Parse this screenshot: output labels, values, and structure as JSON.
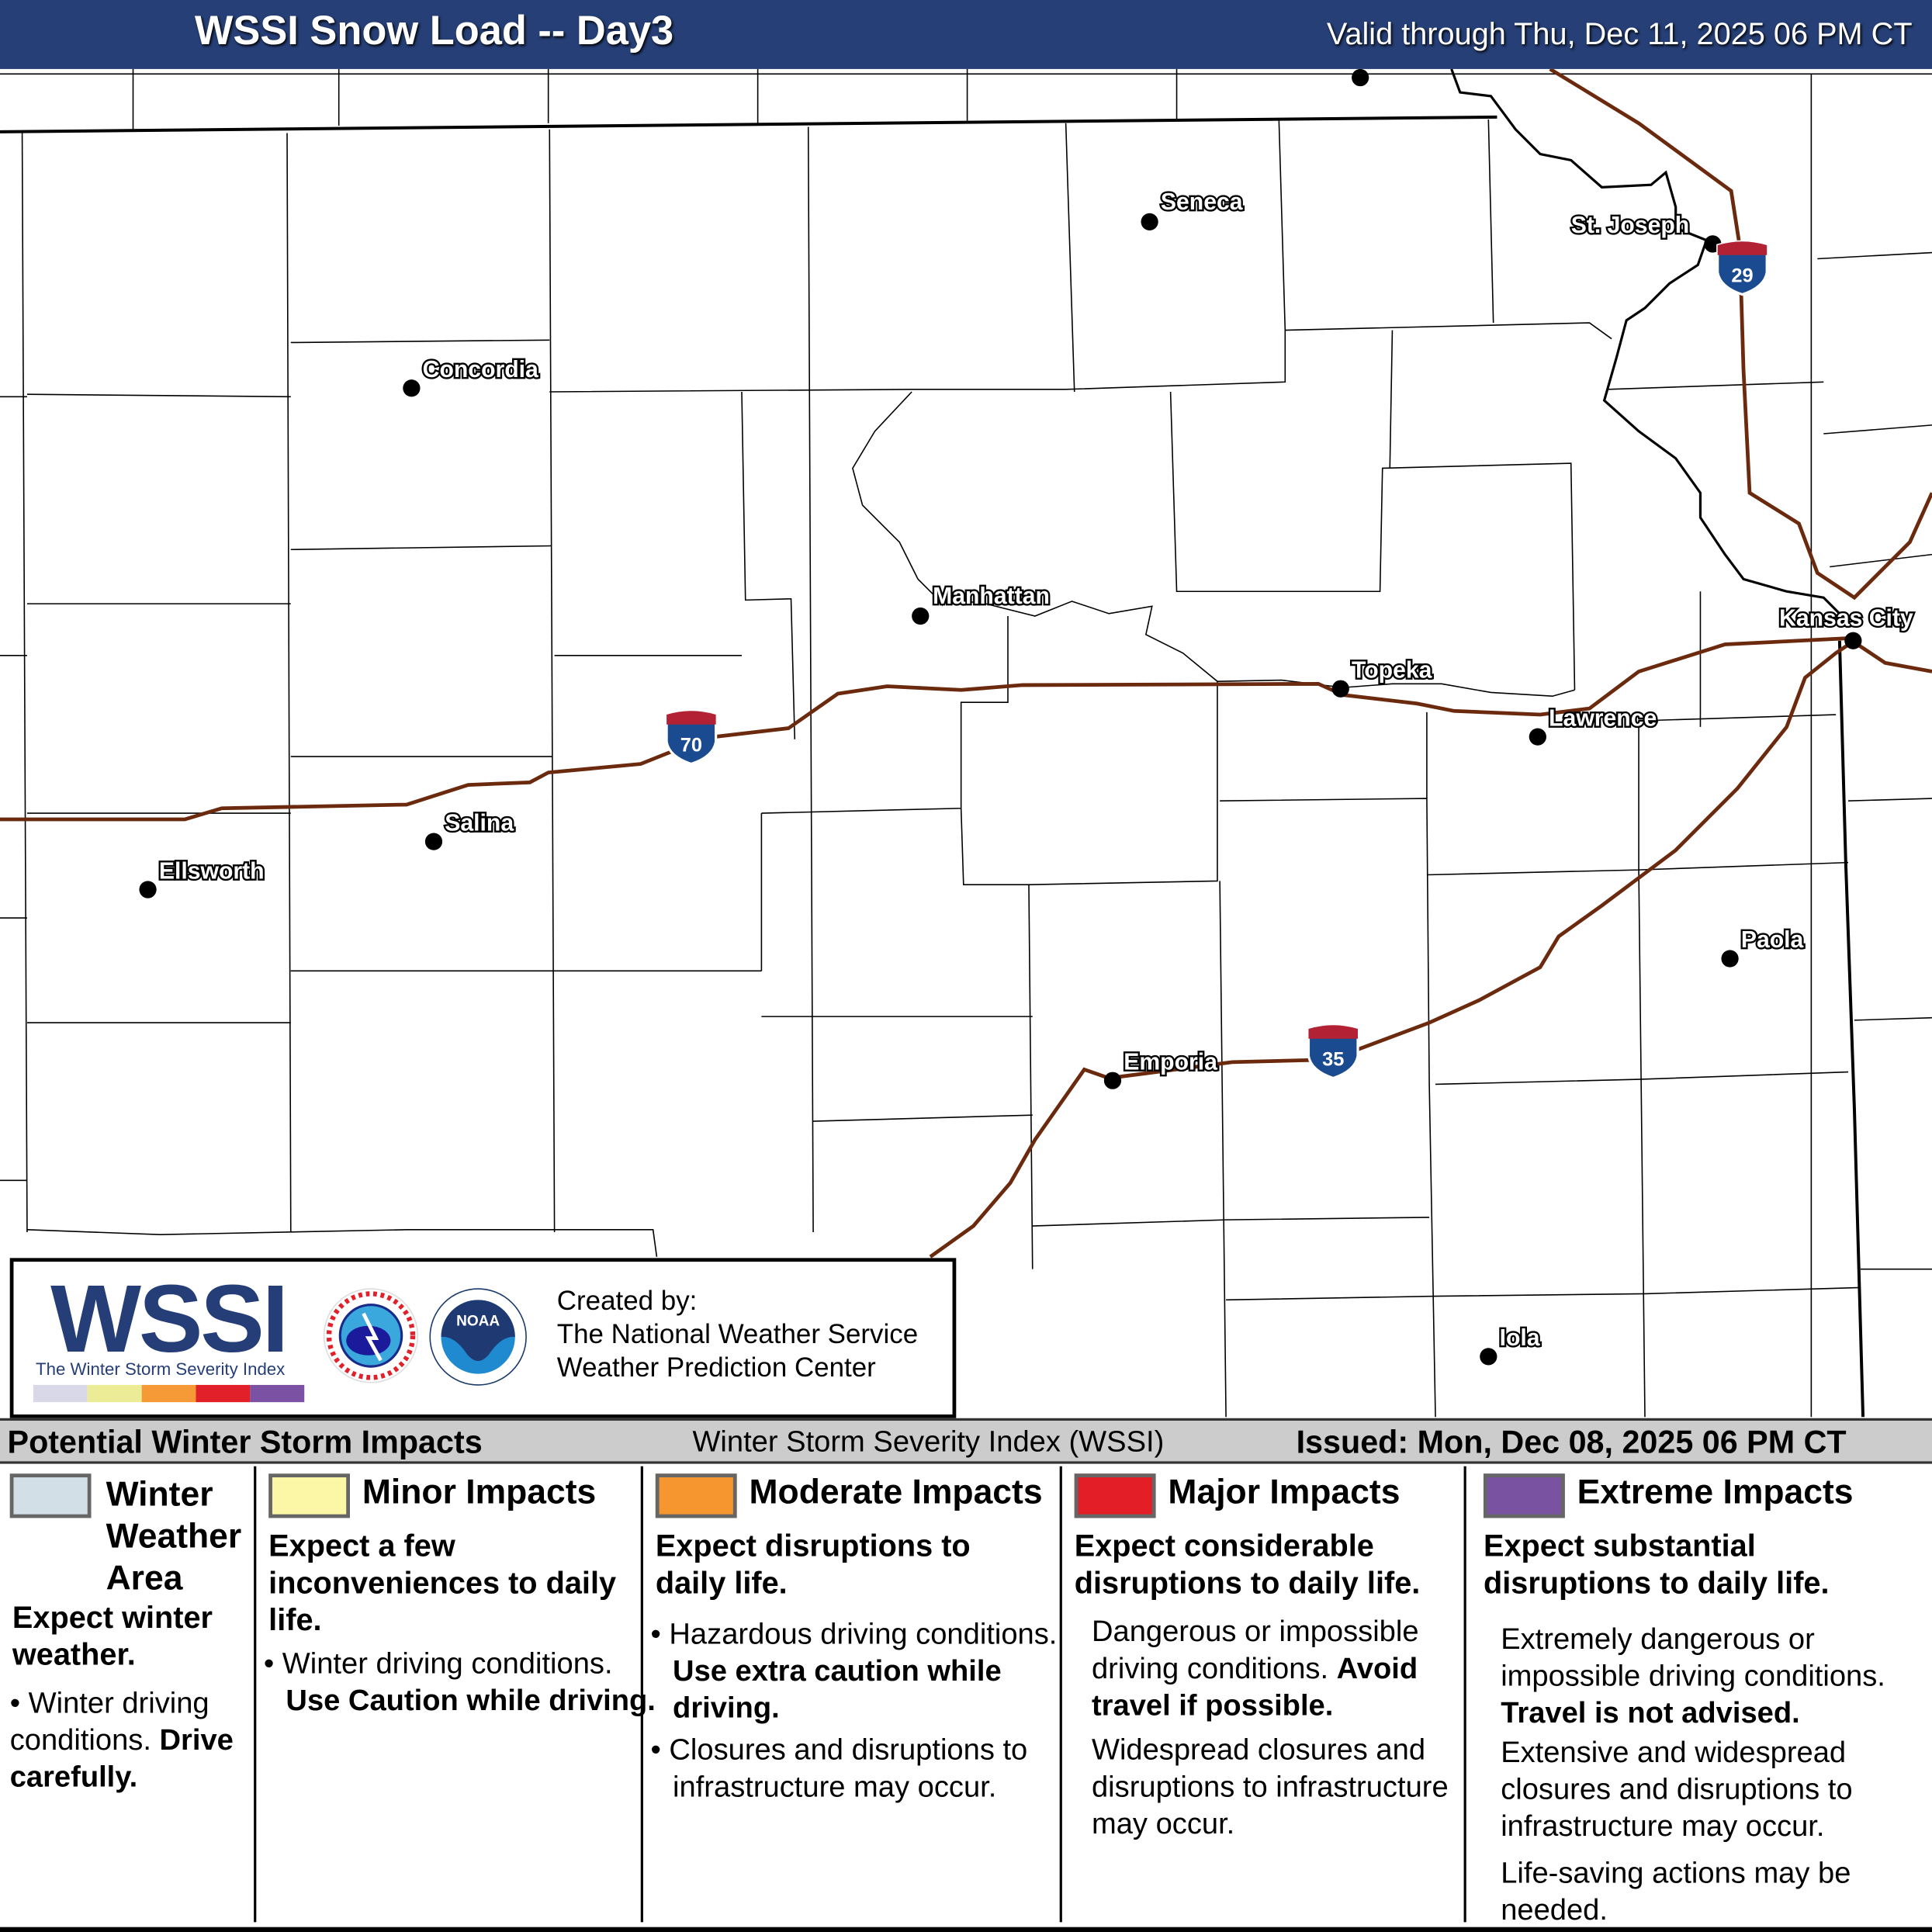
{
  "header": {
    "title": "WSSI Snow Load -- Day3",
    "valid": "Valid through Thu, Dec 11, 2025 06 PM CT",
    "bg_color": "#263f76"
  },
  "map": {
    "cities": [
      "Seneca",
      "St. Joseph",
      "Concordia",
      "Manhattan",
      "Topeka",
      "Kansas City",
      "Lawrence",
      "Salina",
      "Ellsworth",
      "Paola",
      "Emporia",
      "Iola"
    ],
    "interstates": [
      "70",
      "29",
      "35"
    ],
    "interstate_color": "#6b2a0e"
  },
  "logo": {
    "wssi": "WSSI",
    "tm": "TM",
    "subtitle": "The Winter Storm Severity Index",
    "colors": [
      "#d8d8e8",
      "#ecec96",
      "#f59a36",
      "#e2202a",
      "#7b52a3"
    ],
    "nws_text": "NATIONAL WEATHER SERVICE",
    "noaa_text": "NOAA",
    "created_by": "Created by:",
    "org1": "The National Weather Service",
    "org2": "Weather Prediction Center"
  },
  "legend": {
    "title": "Potential Winter Storm Impacts",
    "index_name": "Winter Storm Severity Index (WSSI)",
    "issued": "Issued: Mon, Dec 08, 2025 06 PM CT",
    "categories": [
      {
        "name": "Winter Weather Area",
        "color": "#d3dfe6",
        "expect": "Expect winter weather.",
        "bullet1": "Winter driving conditions.",
        "bullet1_bold": "Drive carefully."
      },
      {
        "name": "Minor Impacts",
        "color": "#fbf7a6",
        "expect": "Expect a few inconveniences to daily life.",
        "bullet1": "Winter driving conditions.",
        "bullet1_bold": "Use Caution while driving."
      },
      {
        "name": "Moderate Impacts",
        "color": "#f6962f",
        "expect": "Expect disruptions to daily life.",
        "bullet1": "Hazardous driving conditions.",
        "bullet1_bold": "Use extra caution while driving.",
        "bullet2": "Closures and disruptions to infrastructure may occur."
      },
      {
        "name": "Major Impacts",
        "color": "#e41e26",
        "expect": "Expect considerable disruptions to daily life.",
        "p1": "Dangerous or impossible driving conditions.",
        "p1_bold": "Avoid travel if possible.",
        "p2": "Widespread closures and disruptions to infrastructure may occur."
      },
      {
        "name": "Extreme Impacts",
        "color": "#7953a1",
        "expect": "Expect substantial disruptions to daily life.",
        "p1": "Extremely dangerous or impossible driving conditions.",
        "p1_bold": "Travel is not advised.",
        "p2": "Extensive and widespread closures and disruptions to infrastructure may occur.",
        "p3": "Life-saving actions may be needed."
      }
    ]
  }
}
